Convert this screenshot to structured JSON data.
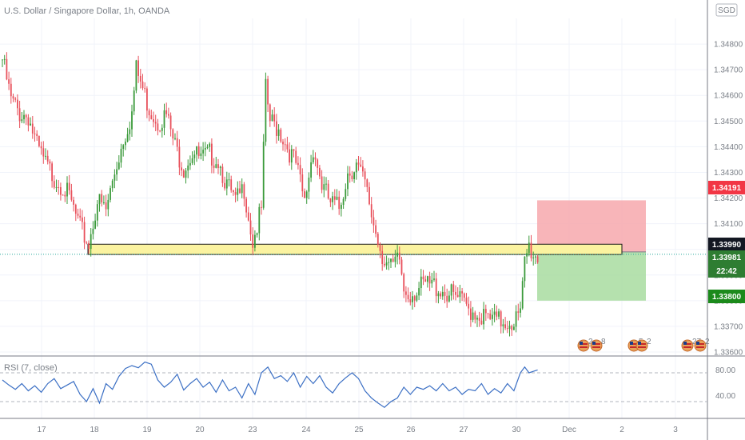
{
  "header": {
    "title": "U.S. Dollar / Singapore Dollar, 1h, OANDA",
    "currency_badge": "SGD"
  },
  "price_tags": {
    "stop_loss": "1.34191",
    "last_close": "1.33990",
    "current": "1.33981",
    "countdown": "22:42",
    "take_profit": "1.33800"
  },
  "event_flags": [
    "2",
    "8",
    "5",
    "2",
    "27",
    "2"
  ],
  "colors": {
    "up": "#26a69a",
    "up_candle": "#3a9a3a",
    "down": "#e8505b",
    "stop_zone": "#f7a8ad",
    "profit_zone": "#a8dca0",
    "support_zone": "#fbf3a0",
    "rsi_line": "#3b6fc4"
  },
  "rsi": {
    "label": "RSI (7, close)",
    "ticks": [
      "80.00",
      "40.00"
    ]
  },
  "chart_data": {
    "type": "candlestick",
    "symbol": "USD/SGD",
    "interval": "1h",
    "ylim": [
      1.336,
      1.349
    ],
    "yticks": [
      1.348,
      1.347,
      1.346,
      1.345,
      1.344,
      1.343,
      1.342,
      1.341,
      1.34,
      1.339,
      1.338,
      1.337,
      1.336
    ],
    "ytick_labels": [
      "1.34800",
      "1.34700",
      "1.34600",
      "1.34500",
      "1.34400",
      "1.34300",
      "1.34200",
      "1.34100",
      "1.34000",
      "1.33900",
      "1.33800",
      "1.33700",
      "1.33600"
    ],
    "xtick_labels": [
      "17",
      "18",
      "19",
      "20",
      "23",
      "24",
      "25",
      "26",
      "27",
      "30",
      "Dec",
      "2",
      "3"
    ],
    "support_zone": [
      1.3398,
      1.3402
    ],
    "position": {
      "entry": 1.3399,
      "stop": 1.34191,
      "target": 1.338
    },
    "price_path": [
      [
        0,
        1.3474
      ],
      [
        4,
        1.3458
      ],
      [
        8,
        1.3453
      ],
      [
        12,
        1.3452
      ],
      [
        16,
        1.344
      ],
      [
        20,
        1.3433
      ],
      [
        24,
        1.3428
      ],
      [
        28,
        1.3425
      ],
      [
        32,
        1.3418
      ],
      [
        36,
        1.3408
      ],
      [
        40,
        1.3402
      ],
      [
        44,
        1.3419
      ],
      [
        48,
        1.3415
      ],
      [
        52,
        1.343
      ],
      [
        56,
        1.3443
      ],
      [
        60,
        1.3453
      ],
      [
        62,
        1.347
      ],
      [
        64,
        1.3465
      ],
      [
        68,
        1.3455
      ],
      [
        72,
        1.345
      ],
      [
        76,
        1.3452
      ],
      [
        80,
        1.344
      ],
      [
        84,
        1.3432
      ],
      [
        88,
        1.3438
      ],
      [
        92,
        1.3435
      ],
      [
        96,
        1.3437
      ],
      [
        100,
        1.3435
      ],
      [
        104,
        1.3425
      ],
      [
        108,
        1.3418
      ],
      [
        112,
        1.3424
      ],
      [
        116,
        1.3403
      ],
      [
        120,
        1.3415
      ],
      [
        122,
        1.3462
      ],
      [
        124,
        1.345
      ],
      [
        128,
        1.3447
      ],
      [
        132,
        1.344
      ],
      [
        136,
        1.3433
      ],
      [
        140,
        1.3418
      ],
      [
        144,
        1.344
      ],
      [
        148,
        1.3425
      ],
      [
        152,
        1.3418
      ],
      [
        156,
        1.3416
      ],
      [
        160,
        1.343
      ],
      [
        164,
        1.3433
      ],
      [
        168,
        1.3425
      ],
      [
        172,
        1.341
      ],
      [
        176,
        1.3398
      ],
      [
        180,
        1.3392
      ],
      [
        184,
        1.3396
      ],
      [
        186,
        1.3384
      ],
      [
        188,
        1.3383
      ],
      [
        192,
        1.3384
      ],
      [
        196,
        1.3386
      ],
      [
        200,
        1.3386
      ],
      [
        204,
        1.3384
      ],
      [
        208,
        1.3382
      ],
      [
        212,
        1.338
      ],
      [
        216,
        1.3377
      ],
      [
        220,
        1.3375
      ],
      [
        224,
        1.3373
      ],
      [
        228,
        1.3372
      ],
      [
        232,
        1.3372
      ],
      [
        236,
        1.3372
      ],
      [
        240,
        1.3374
      ],
      [
        242,
        1.3395
      ],
      [
        244,
        1.3401
      ],
      [
        246,
        1.3398
      ],
      [
        248,
        1.3397
      ]
    ],
    "rsi_ylim": [
      10,
      90
    ],
    "rsi_path": [
      [
        0,
        60
      ],
      [
        3,
        53
      ],
      [
        6,
        47
      ],
      [
        9,
        55
      ],
      [
        12,
        45
      ],
      [
        15,
        52
      ],
      [
        18,
        43
      ],
      [
        21,
        55
      ],
      [
        24,
        62
      ],
      [
        27,
        48
      ],
      [
        30,
        53
      ],
      [
        33,
        58
      ],
      [
        36,
        40
      ],
      [
        39,
        30
      ],
      [
        42,
        48
      ],
      [
        45,
        28
      ],
      [
        48,
        55
      ],
      [
        51,
        47
      ],
      [
        54,
        65
      ],
      [
        57,
        76
      ],
      [
        60,
        80
      ],
      [
        63,
        77
      ],
      [
        66,
        85
      ],
      [
        69,
        82
      ],
      [
        72,
        60
      ],
      [
        75,
        50
      ],
      [
        78,
        57
      ],
      [
        81,
        68
      ],
      [
        84,
        46
      ],
      [
        87,
        55
      ],
      [
        90,
        62
      ],
      [
        93,
        50
      ],
      [
        96,
        57
      ],
      [
        99,
        43
      ],
      [
        102,
        60
      ],
      [
        105,
        45
      ],
      [
        108,
        50
      ],
      [
        111,
        35
      ],
      [
        114,
        55
      ],
      [
        117,
        40
      ],
      [
        120,
        70
      ],
      [
        123,
        78
      ],
      [
        126,
        62
      ],
      [
        129,
        66
      ],
      [
        132,
        58
      ],
      [
        135,
        70
      ],
      [
        138,
        50
      ],
      [
        141,
        65
      ],
      [
        144,
        55
      ],
      [
        147,
        66
      ],
      [
        150,
        50
      ],
      [
        153,
        42
      ],
      [
        156,
        55
      ],
      [
        159,
        63
      ],
      [
        162,
        70
      ],
      [
        165,
        62
      ],
      [
        168,
        45
      ],
      [
        171,
        35
      ],
      [
        174,
        28
      ],
      [
        177,
        22
      ],
      [
        180,
        30
      ],
      [
        183,
        35
      ],
      [
        186,
        50
      ],
      [
        189,
        40
      ],
      [
        192,
        50
      ],
      [
        195,
        47
      ],
      [
        198,
        52
      ],
      [
        201,
        45
      ],
      [
        204,
        55
      ],
      [
        207,
        45
      ],
      [
        210,
        50
      ],
      [
        213,
        40
      ],
      [
        216,
        47
      ],
      [
        219,
        45
      ],
      [
        222,
        55
      ],
      [
        225,
        40
      ],
      [
        228,
        48
      ],
      [
        231,
        42
      ],
      [
        234,
        55
      ],
      [
        237,
        45
      ],
      [
        240,
        70
      ],
      [
        242,
        78
      ],
      [
        244,
        70
      ],
      [
        246,
        72
      ],
      [
        248,
        74
      ]
    ]
  }
}
